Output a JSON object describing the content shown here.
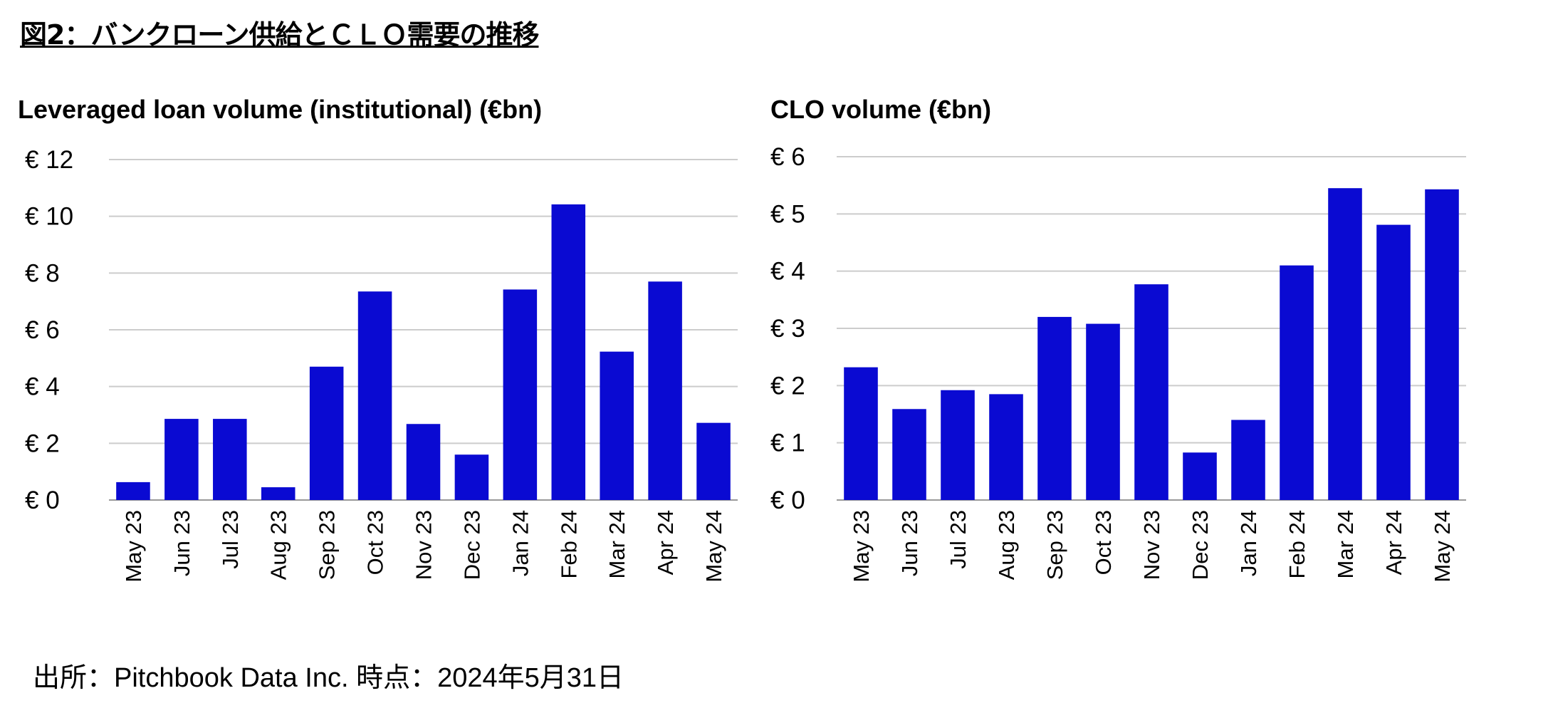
{
  "figure_title": "図2：バンクローン供給とＣＬＯ需要の推移",
  "footer": "出所：Pitchbook Data Inc. 時点：2024年5月31日",
  "colors": {
    "bar": "#0a0ad2",
    "grid": "#cccccc"
  },
  "chart_data": [
    {
      "type": "bar",
      "title": "Leveraged loan volume (institutional) (€bn)",
      "xlabel": "",
      "ylabel": "",
      "categories": [
        "May 23",
        "Jun 23",
        "Jul 23",
        "Aug 23",
        "Sep 23",
        "Oct 23",
        "Nov 23",
        "Dec 23",
        "Jan 24",
        "Feb 24",
        "Mar 24",
        "Apr 24",
        "May 24"
      ],
      "values": [
        0.63,
        2.86,
        2.86,
        0.45,
        4.7,
        7.35,
        2.68,
        1.6,
        7.42,
        10.42,
        5.23,
        7.7,
        2.72
      ],
      "ylim": [
        0,
        12
      ],
      "yticks": [
        0,
        2,
        4,
        6,
        8,
        10,
        12
      ],
      "ytick_labels": [
        "€ 0",
        "€ 2",
        "€ 4",
        "€ 6",
        "€ 8",
        "€ 10",
        "€ 12"
      ],
      "grid": true
    },
    {
      "type": "bar",
      "title": "CLO volume (€bn)",
      "xlabel": "",
      "ylabel": "",
      "categories": [
        "May 23",
        "Jun 23",
        "Jul 23",
        "Aug 23",
        "Sep 23",
        "Oct 23",
        "Nov 23",
        "Dec 23",
        "Jan 24",
        "Feb 24",
        "Mar 24",
        "Apr 24",
        "May 24"
      ],
      "values": [
        2.32,
        1.59,
        1.92,
        1.85,
        3.2,
        3.08,
        3.77,
        0.83,
        1.4,
        4.1,
        5.45,
        4.81,
        5.43
      ],
      "ylim": [
        0,
        6
      ],
      "yticks": [
        0,
        1,
        2,
        3,
        4,
        5,
        6
      ],
      "ytick_labels": [
        "€ 0",
        "€ 1",
        "€ 2",
        "€ 3",
        "€ 4",
        "€ 5",
        "€ 6"
      ],
      "grid": true
    }
  ]
}
